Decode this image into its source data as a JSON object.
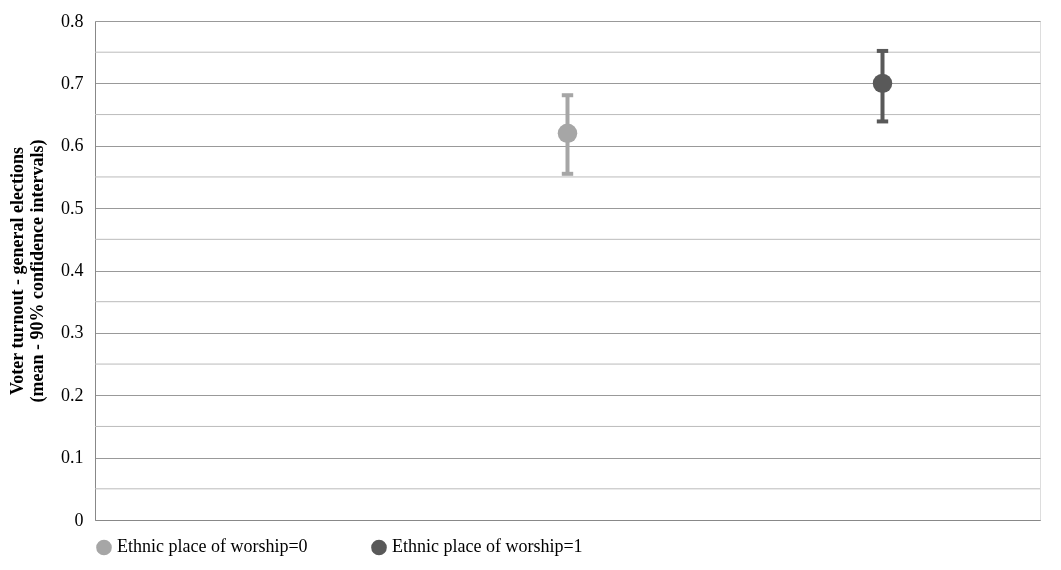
{
  "chart_data": {
    "type": "scatter",
    "ylabel": "Voter turnout - general elections\n(mean - 90% confidence intervals)",
    "categories": [
      null,
      null,
      null
    ],
    "series": [
      {
        "name": "Ethnic place of worship=0",
        "color": "#a6a6a6",
        "values": [
          null,
          0.62,
          null
        ],
        "errors": [
          null,
          [
            0.555,
            0.681
          ],
          null
        ]
      },
      {
        "name": "Ethnic place of worship=1",
        "color": "#595959",
        "values": [
          null,
          null,
          0.7
        ],
        "errors": [
          null,
          null,
          [
            0.639,
            0.752
          ]
        ]
      }
    ],
    "ylim": [
      0,
      0.8
    ],
    "yticks": [
      0,
      {
        "value": 0.05,
        "label": null
      },
      0.1,
      {
        "value": 0.15,
        "label": null
      },
      0.2,
      {
        "value": 0.25,
        "label": null
      },
      0.3,
      {
        "value": 0.35,
        "label": null
      },
      0.4,
      {
        "value": 0.45,
        "label": null
      },
      0.5,
      {
        "value": 0.55,
        "label": null
      },
      0.6,
      {
        "value": 0.65,
        "label": null
      },
      0.7,
      {
        "value": 0.75,
        "label": null
      },
      0.8
    ],
    "grid": "y",
    "legend": "bottom",
    "marker": "circle",
    "tick_labels": "y"
  }
}
